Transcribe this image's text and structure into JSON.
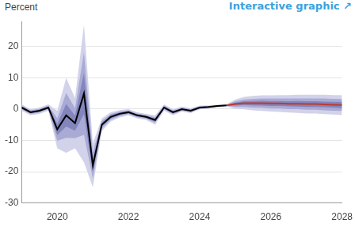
{
  "chart_data": {
    "type": "line",
    "y_label": "Percent",
    "annotations": [
      "Interactive graphic ↗"
    ],
    "x": [
      2019.0,
      2019.25,
      2019.5,
      2019.75,
      2020.0,
      2020.25,
      2020.5,
      2020.75,
      2021.0,
      2021.25,
      2021.5,
      2021.75,
      2022.0,
      2022.25,
      2022.5,
      2022.75,
      2023.0,
      2023.25,
      2023.5,
      2023.75,
      2024.0,
      2024.25,
      2024.5,
      2024.75,
      2025.0,
      2025.25,
      2025.5,
      2025.75,
      2026.0,
      2026.25,
      2026.5,
      2026.75,
      2027.0,
      2027.25,
      2027.5,
      2027.75,
      2028.0
    ],
    "series": [
      {
        "color": "#000000",
        "values": [
          0.5,
          -1,
          -0.5,
          0.5,
          -6.5,
          -2,
          -4.5,
          5,
          -18,
          -5,
          -2.5,
          -1.5,
          -1,
          -2,
          -2.5,
          -3.5,
          0.5,
          -1,
          0,
          -0.5,
          0.5,
          0.7,
          1,
          1.2,
          null,
          null,
          null,
          null,
          null,
          null,
          null,
          null,
          null,
          null,
          null,
          null,
          null
        ]
      },
      {
        "color": "#c0392b",
        "values": [
          null,
          null,
          null,
          null,
          null,
          null,
          null,
          null,
          null,
          null,
          null,
          null,
          null,
          null,
          null,
          null,
          null,
          null,
          null,
          null,
          null,
          null,
          null,
          1.2,
          1.6,
          1.9,
          1.9,
          1.9,
          1.8,
          1.8,
          1.7,
          1.7,
          1.6,
          1.6,
          1.5,
          1.4,
          1.3
        ]
      }
    ],
    "bands": [
      {
        "color": "#8385bd",
        "lower": [
          0.2,
          -1.3,
          -0.8,
          0.2,
          -8.3,
          -5.6,
          -6.9,
          -1.6,
          -20.1,
          -5.6,
          -3,
          -1.9,
          -1.3,
          -2.3,
          -2.8,
          -4,
          0.2,
          -1.3,
          -0.2,
          -0.7,
          0.3,
          0.5,
          0.9,
          1.1,
          1.1,
          1.3,
          1.2,
          1.1,
          1,
          1,
          0.9,
          0.8,
          0.7,
          0.7,
          0.6,
          0.5,
          0.3
        ],
        "upper": [
          0.8,
          -0.7,
          -0.2,
          0.8,
          -4.7,
          1.6,
          -2.1,
          11.6,
          -15.9,
          -4.4,
          -2,
          -1.1,
          -0.7,
          -1.7,
          -2.2,
          -3,
          0.8,
          -0.7,
          0.2,
          -0.3,
          0.7,
          0.9,
          1.1,
          1.3,
          2.1,
          2.5,
          2.6,
          2.7,
          2.6,
          2.6,
          2.5,
          2.6,
          2.5,
          2.5,
          2.4,
          2.3,
          2.3
        ]
      },
      {
        "color": "#a9abd4",
        "lower": [
          -0.1,
          -1.6,
          -1.1,
          -0.1,
          -10.1,
          -9.2,
          -9.3,
          -8.2,
          -22.2,
          -6.2,
          -3.4,
          -2.2,
          -1.6,
          -2.6,
          -3.1,
          -4.4,
          -0.1,
          -1.6,
          -0.5,
          -1,
          0.1,
          0.4,
          0.8,
          1,
          0.7,
          0.7,
          0.5,
          0.4,
          0.2,
          0.2,
          0,
          0,
          -0.2,
          -0.2,
          -0.4,
          -0.5,
          -0.6
        ],
        "upper": [
          1.1,
          -0.4,
          0.1,
          1.1,
          -2.9,
          5.2,
          0.3,
          18.2,
          -13.8,
          -3.8,
          -1.6,
          -0.8,
          -0.4,
          -1.4,
          -1.9,
          -2.6,
          1.1,
          -0.4,
          0.5,
          0,
          0.9,
          1,
          1.2,
          1.4,
          2.5,
          3.1,
          3.3,
          3.4,
          3.4,
          3.4,
          3.4,
          3.4,
          3.4,
          3.4,
          3.4,
          3.3,
          3.2
        ]
      },
      {
        "color": "#d2d3ea",
        "lower": [
          -0.5,
          -2,
          -1.5,
          -0.5,
          -12.5,
          -14,
          -12.5,
          -17,
          -25,
          -7,
          -4,
          -2.7,
          -2,
          -3,
          -3.5,
          -5,
          -0.5,
          -2,
          -0.8,
          -1.3,
          -0.1,
          0.2,
          0.6,
          0.9,
          0.1,
          -0.1,
          -0.4,
          -0.6,
          -0.8,
          -0.9,
          -1.1,
          -1.2,
          -1.4,
          -1.4,
          -1.6,
          -1.7,
          -1.9
        ],
        "upper": [
          1.5,
          0,
          0.5,
          1.5,
          -0.5,
          10,
          3.5,
          27,
          -11,
          -3,
          -1,
          -0.3,
          0,
          -1,
          -1.5,
          -2,
          1.5,
          0,
          0.8,
          0.3,
          1.1,
          1.2,
          1.4,
          1.5,
          3.1,
          3.9,
          4.2,
          4.4,
          4.4,
          4.5,
          4.5,
          4.6,
          4.6,
          4.6,
          4.6,
          4.5,
          4.5
        ]
      }
    ],
    "xlim": [
      2019,
      2028
    ],
    "xticks": [
      2020,
      2022,
      2024,
      2026,
      2028
    ],
    "ylim": [
      -30,
      28
    ],
    "yticks": [
      -30,
      -20,
      -10,
      0,
      10,
      20
    ],
    "grid": true
  }
}
